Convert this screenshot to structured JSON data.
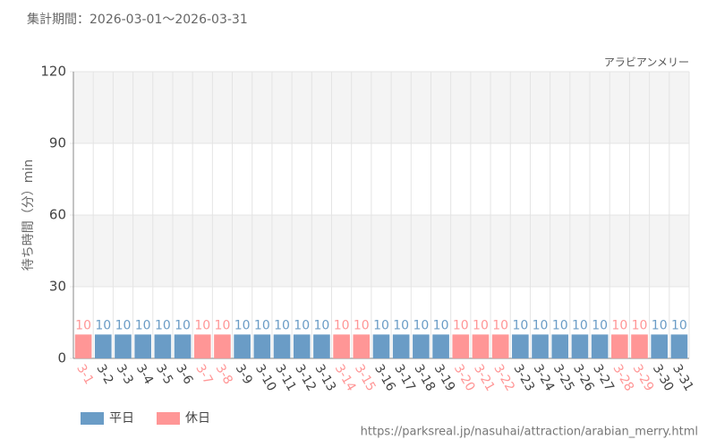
{
  "chart_data": {
    "type": "bar",
    "title": "集計期間：2026-03-01～2026-03-31",
    "chart_label": "アラビアンメリー",
    "ylabel": "待ち時間（分）min",
    "source": "https://parksreal.jp/nasuhai/attraction/arabian_merry.html",
    "categories": [
      "3-1",
      "3-2",
      "3-3",
      "3-4",
      "3-5",
      "3-6",
      "3-7",
      "3-8",
      "3-9",
      "3-10",
      "3-11",
      "3-12",
      "3-13",
      "3-14",
      "3-15",
      "3-16",
      "3-17",
      "3-18",
      "3-19",
      "3-20",
      "3-21",
      "3-22",
      "3-23",
      "3-24",
      "3-25",
      "3-26",
      "3-27",
      "3-28",
      "3-29",
      "3-30",
      "3-31"
    ],
    "series": [
      {
        "name": "平日",
        "color": "#6a9cc6",
        "values": [
          null,
          10,
          10,
          10,
          10,
          10,
          null,
          null,
          10,
          10,
          10,
          10,
          10,
          null,
          null,
          10,
          10,
          10,
          10,
          null,
          null,
          null,
          10,
          10,
          10,
          10,
          10,
          null,
          null,
          10,
          10
        ]
      },
      {
        "name": "休日",
        "color": "#ff9696",
        "values": [
          10,
          null,
          null,
          null,
          null,
          null,
          10,
          10,
          null,
          null,
          null,
          null,
          null,
          10,
          10,
          null,
          null,
          null,
          null,
          10,
          10,
          10,
          null,
          null,
          null,
          null,
          null,
          10,
          10,
          null,
          null
        ]
      }
    ],
    "ylim": [
      0,
      120
    ],
    "yticks": [
      0,
      30,
      60,
      90,
      120
    ],
    "grid": true,
    "legend": "bottom-left"
  }
}
